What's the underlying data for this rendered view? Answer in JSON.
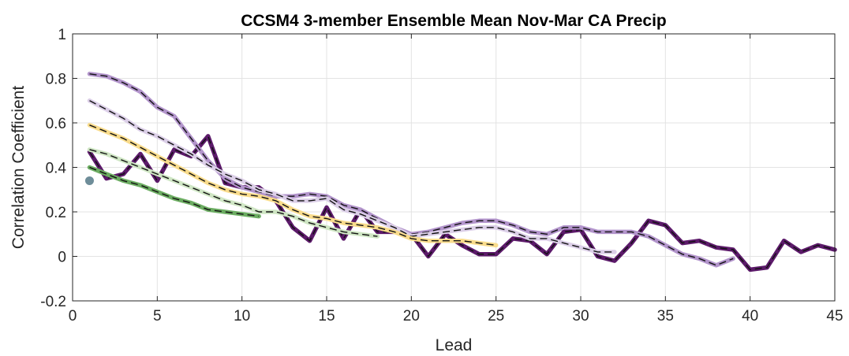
{
  "chart_data": {
    "type": "line",
    "title": "CCSM4 3-member Ensemble Mean Nov-Mar CA Precip",
    "xlabel": "Lead",
    "ylabel": "Correlation Coefficient",
    "xlim": [
      0,
      45
    ],
    "ylim": [
      -0.2,
      1
    ],
    "xticks": [
      0,
      5,
      10,
      15,
      20,
      25,
      30,
      35,
      40,
      45
    ],
    "yticks": [
      -0.2,
      0,
      0.2,
      0.4,
      0.6,
      0.8,
      1
    ],
    "xtick_labels": [
      "0",
      "5",
      "10",
      "15",
      "20",
      "25",
      "30",
      "35",
      "40",
      "45"
    ],
    "ytick_labels": [
      "-0.2",
      "0",
      "0.2",
      "0.4",
      "0.6",
      "0.8",
      "1"
    ],
    "grid": true,
    "legend": "none",
    "series": [
      {
        "color": "#5c1a6a",
        "style": "solid-with-black-dash",
        "x": [
          1,
          2,
          3,
          4,
          5,
          6,
          7,
          8,
          9,
          10,
          11,
          12,
          13,
          14,
          15,
          16,
          17,
          18,
          19,
          20,
          21,
          22,
          23,
          24,
          25,
          26,
          27,
          28,
          29,
          30,
          31,
          32,
          33,
          34,
          35,
          36,
          37,
          38,
          39,
          40,
          41,
          42,
          43,
          44,
          45
        ],
        "y": [
          0.47,
          0.35,
          0.37,
          0.46,
          0.34,
          0.48,
          0.45,
          0.54,
          0.33,
          0.31,
          0.31,
          0.25,
          0.13,
          0.07,
          0.22,
          0.08,
          0.21,
          0.11,
          0.11,
          0.1,
          0.0,
          0.1,
          0.05,
          0.01,
          0.01,
          0.08,
          0.07,
          0.01,
          0.11,
          0.12,
          0.0,
          -0.02,
          0.06,
          0.16,
          0.14,
          0.06,
          0.07,
          0.04,
          0.03,
          -0.06,
          -0.05,
          0.07,
          0.02,
          0.05,
          0.03
        ]
      },
      {
        "color": "#b395cc",
        "style": "solid-with-black-dash",
        "x": [
          1,
          2,
          3,
          4,
          5,
          6,
          7,
          8,
          9,
          10,
          11,
          12,
          13,
          14,
          15,
          16,
          17,
          18,
          19,
          20,
          21,
          22,
          23,
          24,
          25,
          26,
          27,
          28,
          29,
          30,
          31,
          32,
          33,
          34,
          35,
          36,
          37,
          38,
          39
        ],
        "y": [
          0.82,
          0.81,
          0.78,
          0.74,
          0.67,
          0.63,
          0.53,
          0.43,
          0.35,
          0.31,
          0.29,
          0.27,
          0.27,
          0.28,
          0.27,
          0.23,
          0.21,
          0.17,
          0.13,
          0.1,
          0.11,
          0.13,
          0.15,
          0.16,
          0.16,
          0.14,
          0.11,
          0.1,
          0.13,
          0.13,
          0.11,
          0.11,
          0.11,
          0.09,
          0.05,
          0.01,
          -0.01,
          -0.04,
          -0.01
        ]
      },
      {
        "color": "#dccfe8",
        "style": "solid-with-black-dash",
        "x": [
          1,
          2,
          3,
          4,
          5,
          6,
          7,
          8,
          9,
          10,
          11,
          12,
          13,
          14,
          15,
          16,
          17,
          18,
          19,
          20,
          21,
          22,
          23,
          24,
          25,
          26,
          27,
          28,
          29,
          30,
          31,
          32
        ],
        "y": [
          0.7,
          0.66,
          0.62,
          0.57,
          0.54,
          0.5,
          0.46,
          0.41,
          0.37,
          0.34,
          0.3,
          0.28,
          0.25,
          0.25,
          0.26,
          0.21,
          0.19,
          0.16,
          0.13,
          0.09,
          0.1,
          0.11,
          0.12,
          0.13,
          0.13,
          0.11,
          0.08,
          0.08,
          0.06,
          0.04,
          0.02,
          0.02
        ]
      },
      {
        "color": "#f9dc8c",
        "style": "solid-with-black-dash",
        "x": [
          1,
          2,
          3,
          4,
          5,
          6,
          7,
          8,
          9,
          10,
          11,
          12,
          13,
          14,
          15,
          16,
          17,
          18,
          19,
          20,
          21,
          22,
          23,
          24,
          25
        ],
        "y": [
          0.59,
          0.56,
          0.53,
          0.49,
          0.45,
          0.41,
          0.37,
          0.33,
          0.3,
          0.28,
          0.27,
          0.25,
          0.21,
          0.18,
          0.17,
          0.15,
          0.14,
          0.13,
          0.11,
          0.08,
          0.07,
          0.07,
          0.07,
          0.06,
          0.05
        ]
      },
      {
        "color": "#cfe6c4",
        "style": "solid-with-black-dash",
        "x": [
          1,
          2,
          3,
          4,
          5,
          6,
          7,
          8,
          9,
          10,
          11,
          12,
          13,
          14,
          15,
          16,
          17,
          18
        ],
        "y": [
          0.48,
          0.46,
          0.43,
          0.4,
          0.37,
          0.34,
          0.31,
          0.28,
          0.25,
          0.23,
          0.2,
          0.2,
          0.18,
          0.15,
          0.13,
          0.11,
          0.1,
          0.09
        ]
      },
      {
        "color": "#6cad62",
        "style": "solid-with-black-dash",
        "x": [
          1,
          2,
          3,
          4,
          5,
          6,
          7,
          8,
          9,
          10,
          11
        ],
        "y": [
          0.4,
          0.37,
          0.34,
          0.32,
          0.29,
          0.26,
          0.24,
          0.21,
          0.2,
          0.19,
          0.18
        ]
      },
      {
        "color": "#6e8d99",
        "style": "marker",
        "x": [
          1
        ],
        "y": [
          0.34
        ]
      }
    ]
  }
}
